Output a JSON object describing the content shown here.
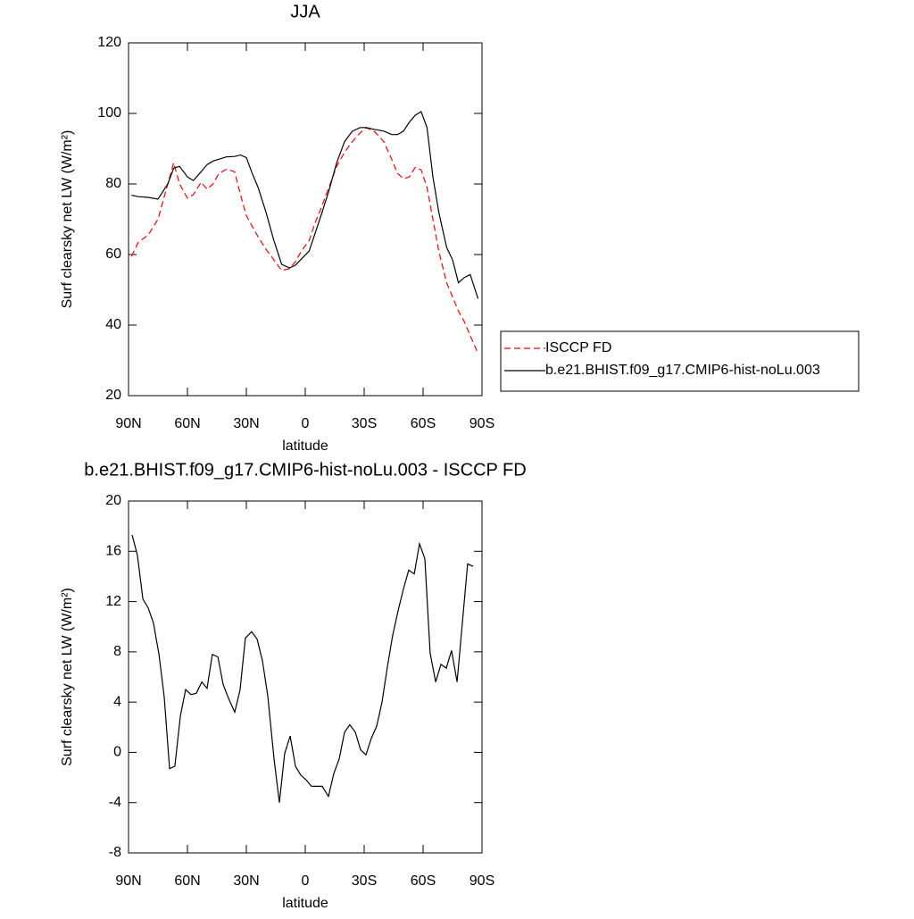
{
  "chart_data": [
    {
      "type": "line",
      "title": "JJA",
      "xlabel": "latitude",
      "ylabel": "Surf clearsky net LW (W/m²)",
      "x": [
        88.5,
        85,
        80,
        75,
        70,
        67,
        64,
        60,
        57,
        53,
        50,
        47,
        44,
        40,
        36,
        33,
        30,
        27,
        24,
        20,
        16,
        12,
        8,
        5,
        2,
        -2,
        -5,
        -8,
        -12,
        -16,
        -20,
        -24,
        -28,
        -31,
        -35,
        -40,
        -44,
        -47,
        -50,
        -53,
        -56,
        -59,
        -62,
        -65,
        -68,
        -72,
        -75,
        -78,
        -81,
        -84,
        -88
      ],
      "series": [
        {
          "name": "ISCCP FD",
          "color": "#ff0000",
          "line_style": "dashed",
          "values": [
            59.5,
            63.5,
            65.5,
            70,
            80,
            86,
            80,
            76,
            77,
            80.5,
            78.5,
            80,
            83,
            84.2,
            83.5,
            77,
            71,
            68,
            65,
            61.5,
            58.5,
            55.5,
            56,
            58,
            61,
            64,
            69,
            73,
            79,
            85,
            89,
            92,
            94.5,
            96,
            95,
            92,
            87,
            83,
            81.5,
            82,
            84.7,
            84,
            79,
            70,
            61,
            52,
            48,
            44,
            41,
            37,
            32
          ]
        },
        {
          "name": "b.e21.BHIST.f09_g17.CMIP6-hist-noLu.003",
          "color": "#000000",
          "line_style": "solid",
          "values": [
            76.8,
            76.4,
            76.2,
            75.7,
            80,
            84.5,
            85,
            82,
            81,
            83.5,
            85.5,
            86.5,
            87,
            87.7,
            87.8,
            88.2,
            87.5,
            83,
            79,
            72,
            64,
            57.2,
            56.2,
            57,
            58.7,
            61,
            66,
            71,
            78,
            86,
            92,
            95,
            96,
            96,
            95.5,
            95,
            94,
            94,
            95,
            97.5,
            99.5,
            100.5,
            96,
            82,
            72,
            62,
            58.5,
            52,
            53.5,
            54.3,
            47.5
          ]
        }
      ],
      "xlim": [
        90,
        -90
      ],
      "xticks": [
        {
          "value": 90,
          "label": "90N"
        },
        {
          "value": 60,
          "label": "60N"
        },
        {
          "value": 30,
          "label": "30N"
        },
        0,
        {
          "value": -30,
          "label": "30S"
        },
        {
          "value": -60,
          "label": "60S"
        },
        {
          "value": -90,
          "label": "90S"
        }
      ],
      "ylim": [
        20,
        120
      ],
      "yticks": [
        20,
        40,
        60,
        80,
        100,
        120
      ],
      "legend": "right"
    },
    {
      "type": "line",
      "title": "b.e21.BHIST.f09_g17.CMIP6-hist-noLu.003 - ISCCP FD",
      "xlabel": "latitude",
      "ylabel": "Surf clearsky net LW (W/m²)",
      "x": [
        88.2,
        85.5,
        82.7,
        80,
        77.3,
        74.5,
        71.8,
        69.1,
        66.4,
        63.6,
        60.9,
        58.2,
        55.5,
        52.7,
        50,
        47.3,
        44.5,
        41.8,
        39.1,
        35.9,
        33.2,
        30.5,
        27.3,
        24.5,
        21.8,
        19.1,
        15.9,
        13.2,
        10.5,
        7.7,
        5,
        2.3,
        -0.5,
        -3.2,
        -5.9,
        -8.6,
        -11.8,
        -14.5,
        -17.3,
        -20,
        -22.7,
        -25.5,
        -28.2,
        -30.9,
        -33.6,
        -36.4,
        -39.1,
        -41.8,
        -44.5,
        -47.3,
        -50,
        -52.7,
        -55.5,
        -58.2,
        -60.9,
        -63.6,
        -66.4,
        -69.1,
        -71.8,
        -74.5,
        -77.3,
        -80,
        -82.7,
        -85.5
      ],
      "series": [
        {
          "color": "#000000",
          "line_style": "solid",
          "values": [
            17.3,
            15.7,
            12.2,
            11.5,
            10.3,
            7.8,
            4.4,
            -1.3,
            -1.1,
            2.9,
            5,
            4.6,
            4.7,
            5.6,
            5.1,
            7.8,
            7.6,
            5.4,
            4.3,
            3.2,
            5,
            9.1,
            9.6,
            9,
            7.3,
            4.5,
            -0.5,
            -4,
            -0.1,
            1.3,
            -1.1,
            -1.8,
            -2.2,
            -2.7,
            -2.7,
            -2.7,
            -3.5,
            -1.7,
            -0.5,
            1.6,
            2.2,
            1.6,
            0.2,
            -0.2,
            1.1,
            2.1,
            4,
            6.8,
            9.3,
            11.3,
            13,
            14.5,
            14.2,
            16.6,
            15.4,
            7.9,
            5.6,
            7,
            6.7,
            8.1,
            5.6,
            10.3,
            15,
            14.8
          ]
        }
      ],
      "xlim": [
        90,
        -90
      ],
      "xticks": [
        {
          "value": 90,
          "label": "90N"
        },
        {
          "value": 60,
          "label": "60N"
        },
        {
          "value": 30,
          "label": "30N"
        },
        0,
        {
          "value": -30,
          "label": "30S"
        },
        {
          "value": -60,
          "label": "60S"
        },
        {
          "value": -90,
          "label": "90S"
        }
      ],
      "ylim": [
        -8,
        20
      ],
      "yticks": [
        -8,
        -4,
        0,
        4,
        8,
        12,
        16,
        20
      ]
    }
  ]
}
